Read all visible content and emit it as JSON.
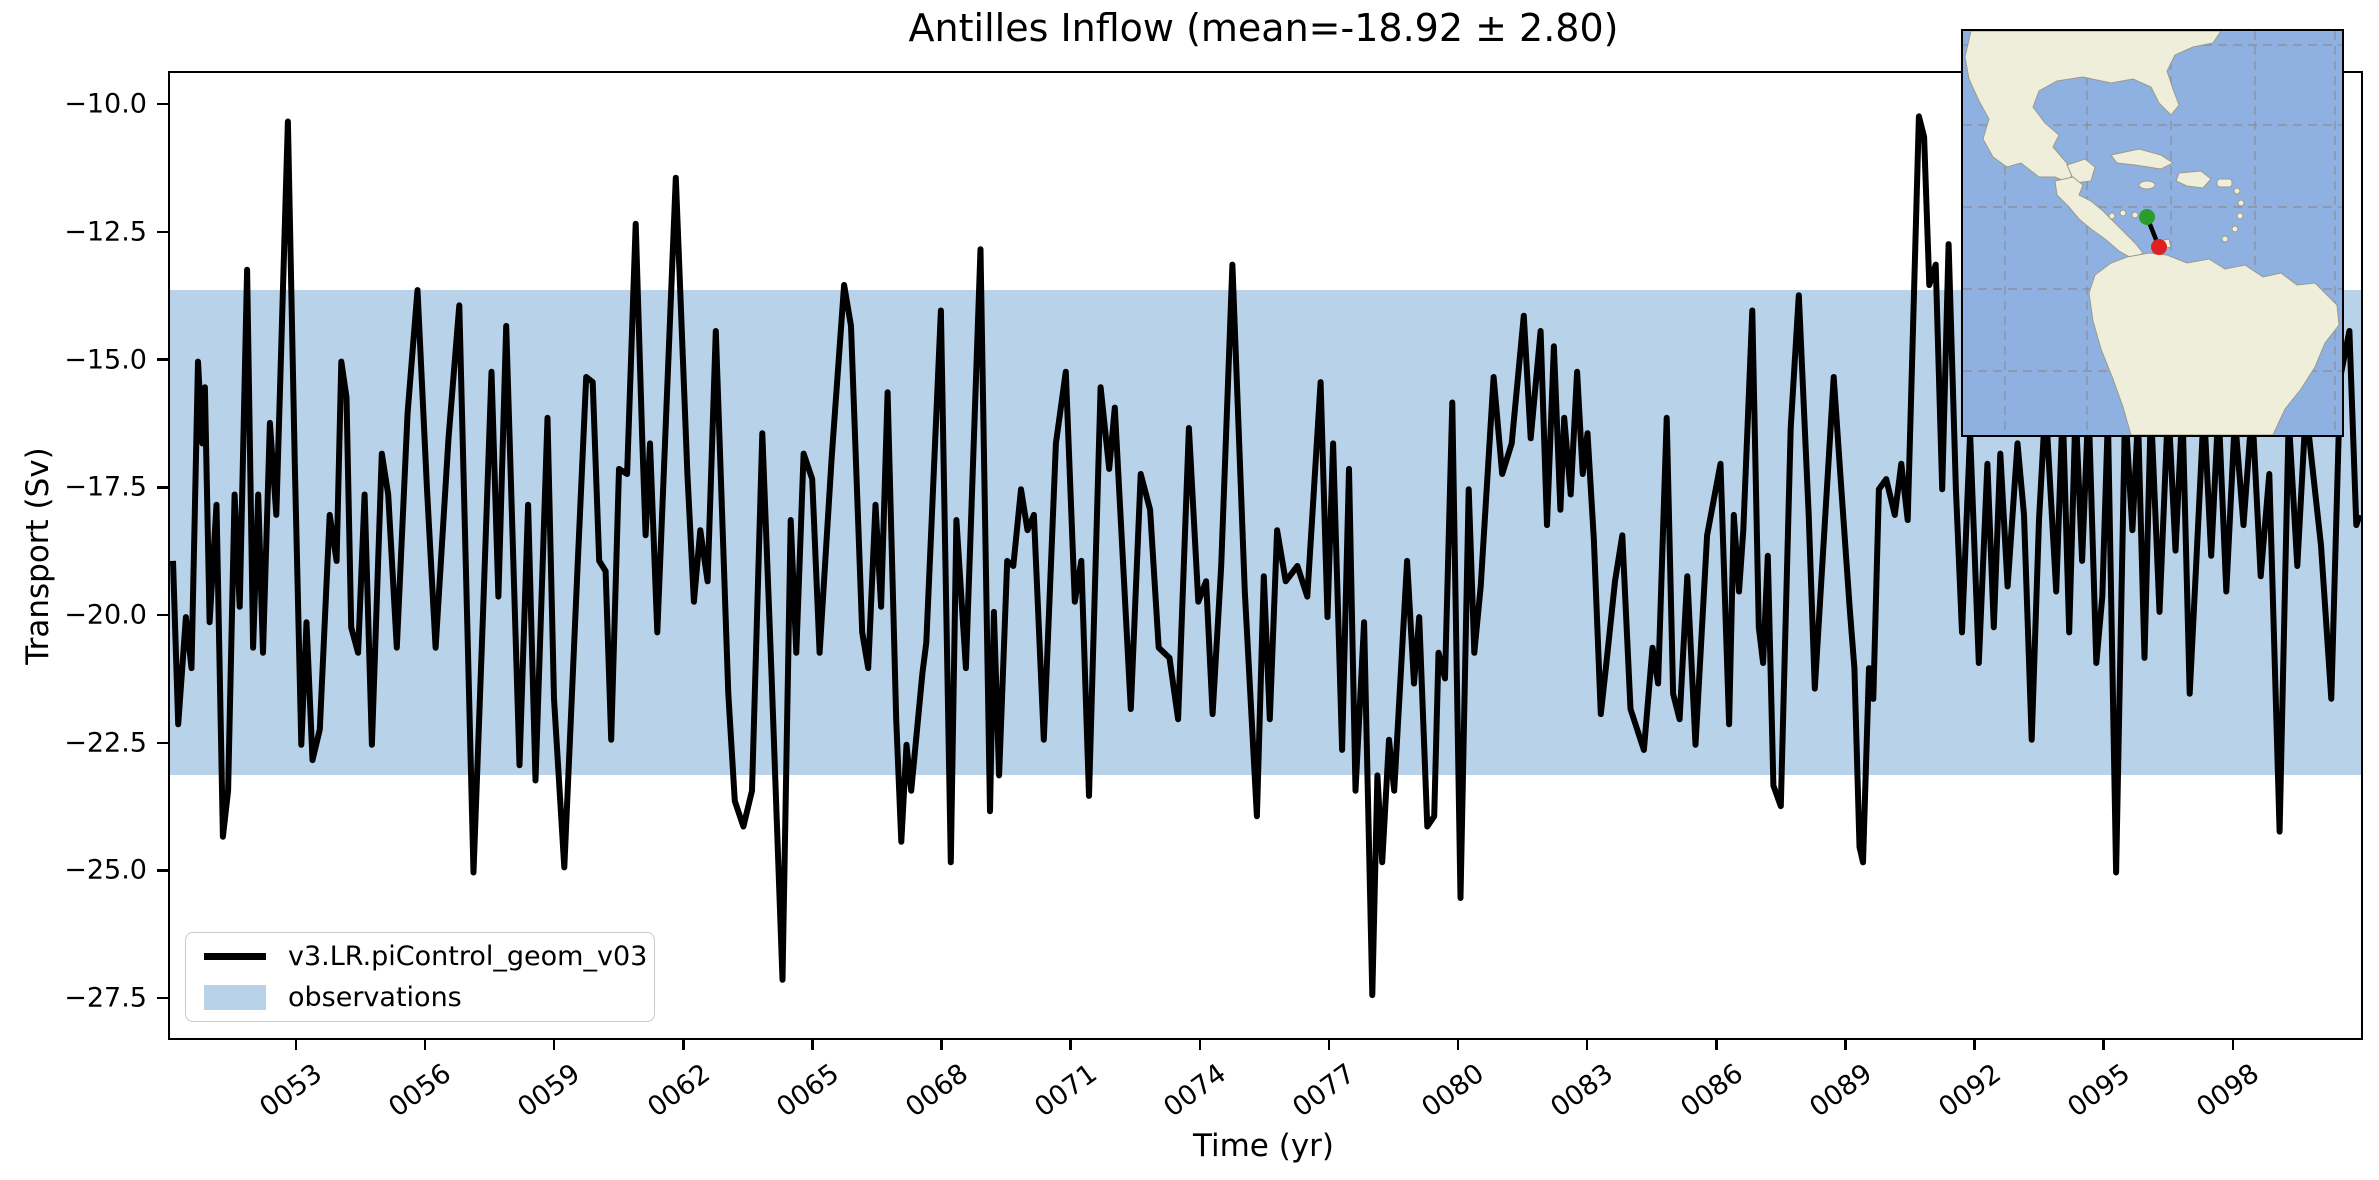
{
  "title": "Antilles Inflow (mean=-18.92 ± 2.80)",
  "axes": {
    "xlabel": "Time (yr)",
    "ylabel": "Transport (Sv)",
    "x_tick_labels": [
      "0053",
      "0056",
      "0059",
      "0062",
      "0065",
      "0068",
      "0071",
      "0074",
      "0077",
      "0080",
      "0083",
      "0086",
      "0089",
      "0092",
      "0095",
      "0098"
    ],
    "y_tick_labels": [
      "−10.0",
      "−12.5",
      "−15.0",
      "−17.5",
      "−20.0",
      "−22.5",
      "−25.0",
      "−27.5"
    ]
  },
  "legend": {
    "items": [
      {
        "label": "v3.LR.piControl_geom_v03",
        "type": "line",
        "color": "#000000"
      },
      {
        "label": "observations",
        "type": "patch",
        "color": "#b8d3e9"
      }
    ]
  },
  "colors": {
    "series_line": "#000000",
    "observations_band": "#b8d3e9",
    "map_ocean": "#8fb1e2",
    "map_land": "#efeedb",
    "map_start_marker": "#2a9d2a",
    "map_end_marker": "#e02020",
    "map_transect_line": "#000000"
  },
  "inset_map": {
    "description_markers": [
      "transect-start-green-dot",
      "transect-end-red-dot"
    ],
    "grid": "dashed"
  },
  "chart_data": {
    "type": "line",
    "title": "Antilles Inflow (mean=-18.92 ± 2.80)",
    "xlabel": "Time (yr)",
    "ylabel": "Transport (Sv)",
    "xlim": [
      50.03,
      100.93
    ],
    "ylim": [
      -28.24,
      -9.35
    ],
    "x_tick_years": [
      53,
      56,
      59,
      62,
      65,
      68,
      71,
      74,
      77,
      80,
      83,
      86,
      89,
      92,
      95,
      98
    ],
    "y_tick_values": [
      -10.0,
      -12.5,
      -15.0,
      -17.5,
      -20.0,
      -22.5,
      -25.0,
      -27.5
    ],
    "grid": false,
    "legend_position": "lower left",
    "observations_band": {
      "label": "observations",
      "min": -23.1,
      "max": -13.6,
      "color": "#b8d3e9"
    },
    "series": [
      {
        "name": "v3.LR.piControl_geom_v03",
        "color": "#000000",
        "mean": -18.92,
        "std": 2.8,
        "points": [
          [
            50.1,
            -18.9
          ],
          [
            50.22,
            -22.1
          ],
          [
            50.4,
            -20.0
          ],
          [
            50.53,
            -21.0
          ],
          [
            50.68,
            -15.0
          ],
          [
            50.78,
            -16.6
          ],
          [
            50.84,
            -15.5
          ],
          [
            50.95,
            -20.1
          ],
          [
            51.11,
            -17.8
          ],
          [
            51.26,
            -24.3
          ],
          [
            51.38,
            -23.4
          ],
          [
            51.53,
            -17.6
          ],
          [
            51.65,
            -19.8
          ],
          [
            51.82,
            -13.2
          ],
          [
            51.96,
            -20.6
          ],
          [
            52.08,
            -17.6
          ],
          [
            52.19,
            -20.7
          ],
          [
            52.35,
            -16.2
          ],
          [
            52.5,
            -18.0
          ],
          [
            52.77,
            -10.3
          ],
          [
            52.93,
            -17.0
          ],
          [
            53.08,
            -22.5
          ],
          [
            53.2,
            -20.1
          ],
          [
            53.34,
            -22.8
          ],
          [
            53.51,
            -22.2
          ],
          [
            53.74,
            -18.0
          ],
          [
            53.9,
            -18.9
          ],
          [
            54.01,
            -15.0
          ],
          [
            54.13,
            -15.7
          ],
          [
            54.24,
            -20.2
          ],
          [
            54.4,
            -20.7
          ],
          [
            54.55,
            -17.6
          ],
          [
            54.72,
            -22.5
          ],
          [
            54.95,
            -16.8
          ],
          [
            55.1,
            -17.6
          ],
          [
            55.3,
            -20.6
          ],
          [
            55.55,
            -16.0
          ],
          [
            55.78,
            -13.6
          ],
          [
            56.0,
            -17.5
          ],
          [
            56.2,
            -20.6
          ],
          [
            56.5,
            -16.5
          ],
          [
            56.75,
            -13.9
          ],
          [
            57.08,
            -25.0
          ],
          [
            57.3,
            -20.0
          ],
          [
            57.5,
            -15.2
          ],
          [
            57.66,
            -19.6
          ],
          [
            57.84,
            -14.3
          ],
          [
            58.15,
            -22.9
          ],
          [
            58.35,
            -17.8
          ],
          [
            58.52,
            -23.2
          ],
          [
            58.8,
            -16.1
          ],
          [
            58.95,
            -21.6
          ],
          [
            59.19,
            -24.9
          ],
          [
            59.5,
            -19.0
          ],
          [
            59.7,
            -15.3
          ],
          [
            59.85,
            -15.4
          ],
          [
            60.0,
            -18.9
          ],
          [
            60.15,
            -19.1
          ],
          [
            60.28,
            -22.4
          ],
          [
            60.46,
            -17.1
          ],
          [
            60.65,
            -17.2
          ],
          [
            60.85,
            -12.3
          ],
          [
            61.0,
            -16.5
          ],
          [
            61.08,
            -18.4
          ],
          [
            61.18,
            -16.6
          ],
          [
            61.35,
            -20.3
          ],
          [
            61.78,
            -11.4
          ],
          [
            62.05,
            -17.2
          ],
          [
            62.2,
            -19.7
          ],
          [
            62.35,
            -18.3
          ],
          [
            62.52,
            -19.3
          ],
          [
            62.71,
            -14.4
          ],
          [
            63.0,
            -21.5
          ],
          [
            63.15,
            -23.6
          ],
          [
            63.35,
            -24.1
          ],
          [
            63.55,
            -23.4
          ],
          [
            63.79,
            -16.4
          ],
          [
            64.0,
            -21.0
          ],
          [
            64.26,
            -27.1
          ],
          [
            64.45,
            -18.1
          ],
          [
            64.58,
            -20.7
          ],
          [
            64.75,
            -16.8
          ],
          [
            64.95,
            -17.3
          ],
          [
            65.12,
            -20.7
          ],
          [
            65.4,
            -16.9
          ],
          [
            65.69,
            -13.5
          ],
          [
            65.85,
            -14.3
          ],
          [
            66.11,
            -20.3
          ],
          [
            66.25,
            -21.0
          ],
          [
            66.42,
            -17.8
          ],
          [
            66.55,
            -19.8
          ],
          [
            66.7,
            -15.6
          ],
          [
            66.9,
            -22.0
          ],
          [
            67.02,
            -24.4
          ],
          [
            67.14,
            -22.5
          ],
          [
            67.25,
            -23.4
          ],
          [
            67.51,
            -21.1
          ],
          [
            67.6,
            -20.5
          ],
          [
            67.94,
            -14.0
          ],
          [
            68.17,
            -24.8
          ],
          [
            68.3,
            -18.1
          ],
          [
            68.52,
            -21.0
          ],
          [
            68.86,
            -12.8
          ],
          [
            69.08,
            -23.8
          ],
          [
            69.17,
            -19.9
          ],
          [
            69.29,
            -23.1
          ],
          [
            69.48,
            -18.9
          ],
          [
            69.62,
            -19.0
          ],
          [
            69.8,
            -17.5
          ],
          [
            69.95,
            -18.3
          ],
          [
            70.1,
            -18.0
          ],
          [
            70.33,
            -22.4
          ],
          [
            70.61,
            -16.6
          ],
          [
            70.84,
            -15.2
          ],
          [
            71.05,
            -19.7
          ],
          [
            71.2,
            -18.9
          ],
          [
            71.38,
            -23.5
          ],
          [
            71.65,
            -15.5
          ],
          [
            71.85,
            -17.1
          ],
          [
            71.98,
            -15.9
          ],
          [
            72.35,
            -21.8
          ],
          [
            72.58,
            -17.2
          ],
          [
            72.8,
            -17.9
          ],
          [
            73.0,
            -20.6
          ],
          [
            73.25,
            -20.8
          ],
          [
            73.45,
            -22.0
          ],
          [
            73.7,
            -16.3
          ],
          [
            73.92,
            -19.7
          ],
          [
            74.1,
            -19.3
          ],
          [
            74.25,
            -21.9
          ],
          [
            74.45,
            -19.0
          ],
          [
            74.71,
            -13.1
          ],
          [
            75.0,
            -19.5
          ],
          [
            75.28,
            -23.9
          ],
          [
            75.44,
            -19.2
          ],
          [
            75.58,
            -22.0
          ],
          [
            75.75,
            -18.3
          ],
          [
            75.95,
            -19.3
          ],
          [
            76.22,
            -19.0
          ],
          [
            76.45,
            -19.6
          ],
          [
            76.76,
            -15.4
          ],
          [
            76.92,
            -20.0
          ],
          [
            77.05,
            -16.6
          ],
          [
            77.26,
            -22.6
          ],
          [
            77.42,
            -17.1
          ],
          [
            77.57,
            -23.4
          ],
          [
            77.77,
            -20.1
          ],
          [
            77.96,
            -27.4
          ],
          [
            78.08,
            -23.1
          ],
          [
            78.19,
            -24.8
          ],
          [
            78.35,
            -22.4
          ],
          [
            78.47,
            -23.4
          ],
          [
            78.77,
            -18.9
          ],
          [
            78.93,
            -21.3
          ],
          [
            79.05,
            -20.0
          ],
          [
            79.24,
            -24.1
          ],
          [
            79.4,
            -23.9
          ],
          [
            79.5,
            -20.7
          ],
          [
            79.65,
            -21.2
          ],
          [
            79.82,
            -15.8
          ],
          [
            80.01,
            -25.5
          ],
          [
            80.2,
            -17.5
          ],
          [
            80.33,
            -20.7
          ],
          [
            80.48,
            -19.4
          ],
          [
            80.78,
            -15.3
          ],
          [
            80.98,
            -17.2
          ],
          [
            81.2,
            -16.6
          ],
          [
            81.48,
            -14.1
          ],
          [
            81.64,
            -16.5
          ],
          [
            81.87,
            -14.4
          ],
          [
            82.02,
            -18.2
          ],
          [
            82.18,
            -14.7
          ],
          [
            82.33,
            -17.9
          ],
          [
            82.42,
            -16.1
          ],
          [
            82.57,
            -17.6
          ],
          [
            82.72,
            -15.2
          ],
          [
            82.85,
            -17.2
          ],
          [
            82.96,
            -16.4
          ],
          [
            83.11,
            -18.5
          ],
          [
            83.27,
            -21.9
          ],
          [
            83.4,
            -20.9
          ],
          [
            83.6,
            -19.3
          ],
          [
            83.77,
            -18.4
          ],
          [
            83.96,
            -21.8
          ],
          [
            84.27,
            -22.6
          ],
          [
            84.47,
            -20.6
          ],
          [
            84.6,
            -21.3
          ],
          [
            84.8,
            -16.1
          ],
          [
            84.95,
            -21.5
          ],
          [
            85.1,
            -22.0
          ],
          [
            85.28,
            -19.2
          ],
          [
            85.47,
            -22.5
          ],
          [
            85.74,
            -18.4
          ],
          [
            86.05,
            -17.0
          ],
          [
            86.25,
            -22.1
          ],
          [
            86.36,
            -18.0
          ],
          [
            86.48,
            -19.5
          ],
          [
            86.58,
            -18.3
          ],
          [
            86.79,
            -14.0
          ],
          [
            86.94,
            -20.2
          ],
          [
            87.04,
            -20.9
          ],
          [
            87.15,
            -18.8
          ],
          [
            87.28,
            -23.3
          ],
          [
            87.45,
            -23.7
          ],
          [
            87.68,
            -16.3
          ],
          [
            87.87,
            -13.7
          ],
          [
            88.1,
            -18.0
          ],
          [
            88.24,
            -21.4
          ],
          [
            88.4,
            -19.2
          ],
          [
            88.68,
            -15.3
          ],
          [
            88.85,
            -17.4
          ],
          [
            89.05,
            -19.8
          ],
          [
            89.16,
            -21.0
          ],
          [
            89.28,
            -24.5
          ],
          [
            89.36,
            -24.8
          ],
          [
            89.5,
            -21.0
          ],
          [
            89.6,
            -21.6
          ],
          [
            89.73,
            -17.5
          ],
          [
            89.9,
            -17.3
          ],
          [
            90.1,
            -18.0
          ],
          [
            90.25,
            -17.0
          ],
          [
            90.4,
            -18.1
          ],
          [
            90.66,
            -10.2
          ],
          [
            90.78,
            -10.6
          ],
          [
            90.9,
            -13.5
          ],
          [
            91.05,
            -13.1
          ],
          [
            91.2,
            -17.5
          ],
          [
            91.35,
            -12.7
          ],
          [
            91.52,
            -17.5
          ],
          [
            91.66,
            -20.3
          ],
          [
            91.85,
            -16.4
          ],
          [
            92.05,
            -20.9
          ],
          [
            92.25,
            -17.0
          ],
          [
            92.4,
            -20.2
          ],
          [
            92.55,
            -16.8
          ],
          [
            92.72,
            -19.4
          ],
          [
            92.95,
            -16.6
          ],
          [
            93.1,
            -18.0
          ],
          [
            93.28,
            -22.4
          ],
          [
            93.45,
            -18.1
          ],
          [
            93.6,
            -15.8
          ],
          [
            93.85,
            -19.5
          ],
          [
            94.0,
            -15.9
          ],
          [
            94.15,
            -20.3
          ],
          [
            94.3,
            -15.9
          ],
          [
            94.45,
            -18.9
          ],
          [
            94.6,
            -15.8
          ],
          [
            94.78,
            -20.9
          ],
          [
            94.92,
            -19.6
          ],
          [
            95.05,
            -16.1
          ],
          [
            95.24,
            -25.0
          ],
          [
            95.45,
            -15.9
          ],
          [
            95.62,
            -18.3
          ],
          [
            95.75,
            -16.1
          ],
          [
            95.9,
            -20.8
          ],
          [
            96.05,
            -15.9
          ],
          [
            96.25,
            -19.9
          ],
          [
            96.45,
            -15.8
          ],
          [
            96.62,
            -18.7
          ],
          [
            96.78,
            -15.9
          ],
          [
            96.95,
            -21.5
          ],
          [
            97.1,
            -19.0
          ],
          [
            97.28,
            -15.9
          ],
          [
            97.45,
            -18.8
          ],
          [
            97.62,
            -15.9
          ],
          [
            97.8,
            -19.5
          ],
          [
            98.0,
            -16.1
          ],
          [
            98.2,
            -18.2
          ],
          [
            98.4,
            -15.9
          ],
          [
            98.6,
            -19.2
          ],
          [
            98.8,
            -17.2
          ],
          [
            99.04,
            -24.2
          ],
          [
            99.25,
            -16.1
          ],
          [
            99.45,
            -19.0
          ],
          [
            99.65,
            -15.9
          ],
          [
            100.0,
            -18.6
          ],
          [
            100.24,
            -21.6
          ],
          [
            100.45,
            -15.3
          ],
          [
            100.66,
            -14.4
          ],
          [
            100.82,
            -18.2
          ],
          [
            100.9,
            -18.0
          ]
        ]
      }
    ]
  }
}
